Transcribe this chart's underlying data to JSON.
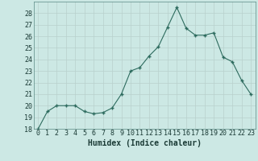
{
  "x": [
    0,
    1,
    2,
    3,
    4,
    5,
    6,
    7,
    8,
    9,
    10,
    11,
    12,
    13,
    14,
    15,
    16,
    17,
    18,
    19,
    20,
    21,
    22,
    23
  ],
  "y": [
    18,
    19.5,
    20,
    20,
    20,
    19.5,
    19.3,
    19.4,
    19.8,
    21,
    23,
    23.3,
    24.3,
    25.1,
    26.8,
    28.5,
    26.7,
    26.1,
    26.1,
    26.3,
    24.2,
    23.8,
    22.2,
    21
  ],
  "xlabel": "Humidex (Indice chaleur)",
  "ylim": [
    18,
    29
  ],
  "xlim": [
    -0.5,
    23.5
  ],
  "yticks": [
    18,
    19,
    20,
    21,
    22,
    23,
    24,
    25,
    26,
    27,
    28
  ],
  "xticks": [
    0,
    1,
    2,
    3,
    4,
    5,
    6,
    7,
    8,
    9,
    10,
    11,
    12,
    13,
    14,
    15,
    16,
    17,
    18,
    19,
    20,
    21,
    22,
    23
  ],
  "line_color": "#2d6b5e",
  "marker_color": "#2d6b5e",
  "bg_color": "#cce8e4",
  "grid_color": "#b8d0cc",
  "label_fontsize": 7,
  "tick_fontsize": 6
}
